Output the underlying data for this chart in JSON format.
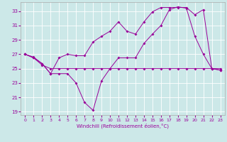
{
  "xlabel": "Windchill (Refroidissement éolien,°C)",
  "background_color": "#cce8e8",
  "line_color": "#990099",
  "xlim": [
    -0.5,
    23.5
  ],
  "ylim": [
    18.5,
    34.2
  ],
  "yticks": [
    19,
    21,
    23,
    25,
    27,
    29,
    31,
    33
  ],
  "xticks": [
    0,
    1,
    2,
    3,
    4,
    5,
    6,
    7,
    8,
    9,
    10,
    11,
    12,
    13,
    14,
    15,
    16,
    17,
    18,
    19,
    20,
    21,
    22,
    23
  ],
  "s1_x": [
    0,
    1,
    2,
    3,
    4,
    5,
    6,
    7,
    8,
    9,
    10,
    11,
    12,
    13,
    14,
    15,
    16,
    17,
    18,
    19,
    20,
    21,
    22,
    23
  ],
  "s1_y": [
    27.0,
    26.5,
    25.5,
    25.0,
    25.0,
    25.0,
    25.0,
    25.0,
    25.0,
    25.0,
    25.0,
    25.0,
    25.0,
    25.0,
    25.0,
    25.0,
    25.0,
    25.0,
    25.0,
    25.0,
    25.0,
    25.0,
    25.0,
    25.0
  ],
  "s2_x": [
    0,
    1,
    2,
    3,
    4,
    5,
    6,
    7,
    8,
    9,
    10,
    11,
    12,
    13,
    14,
    15,
    16,
    17,
    18,
    19,
    20,
    21,
    22,
    23
  ],
  "s2_y": [
    27.0,
    26.6,
    25.7,
    24.3,
    24.3,
    24.3,
    23.0,
    20.3,
    19.2,
    23.3,
    25.0,
    26.5,
    26.5,
    26.5,
    28.5,
    29.8,
    31.0,
    33.2,
    33.6,
    33.4,
    29.5,
    27.0,
    25.0,
    24.8
  ],
  "s3_x": [
    0,
    1,
    2,
    3,
    4,
    5,
    6,
    7,
    8,
    9,
    10,
    11,
    12,
    13,
    14,
    15,
    16,
    17,
    18,
    19,
    20,
    21,
    22,
    23
  ],
  "s3_y": [
    27.0,
    26.5,
    25.7,
    24.3,
    26.5,
    27.0,
    26.8,
    26.8,
    28.7,
    29.5,
    30.2,
    31.5,
    30.2,
    29.8,
    31.5,
    32.9,
    33.5,
    33.5,
    33.5,
    33.5,
    32.5,
    33.2,
    25.0,
    24.8
  ]
}
